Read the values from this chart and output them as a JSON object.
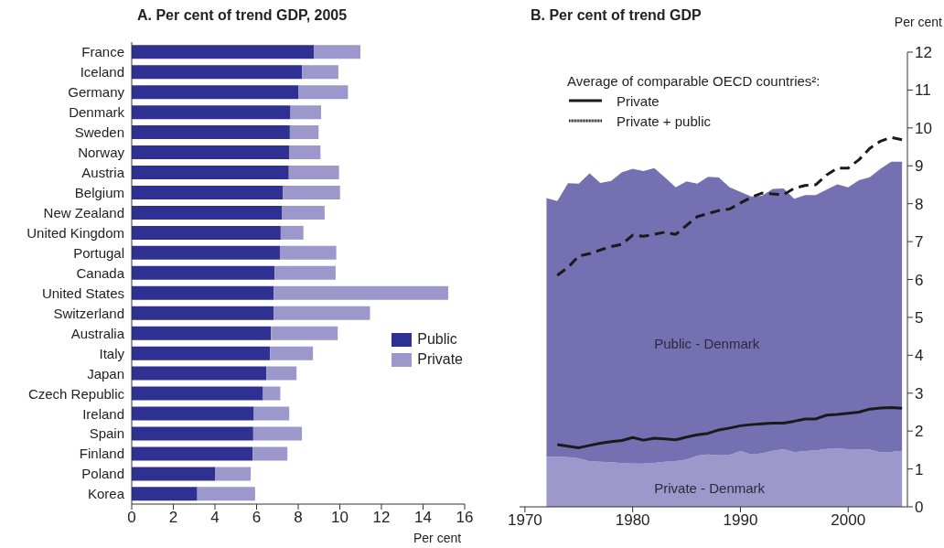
{
  "chart_data": [
    {
      "type": "bar",
      "orientation": "horizontal",
      "stacked": true,
      "title": "A. Per cent of trend GDP, 2005",
      "xlabel": "Per cent",
      "legend": "right",
      "xlim": [
        0,
        16
      ],
      "xticks": [
        0,
        2,
        4,
        6,
        8,
        10,
        12,
        14,
        16
      ],
      "categories": [
        "France",
        "Iceland",
        "Germany",
        "Denmark",
        "Sweden",
        "Norway",
        "Austria",
        "Belgium",
        "New Zealand",
        "United Kingdom",
        "Portugal",
        "Canada",
        "United States",
        "Switzerland",
        "Australia",
        "Italy",
        "Japan",
        "Czech Republic",
        "Ireland",
        "Spain",
        "Finland",
        "Poland",
        "Korea"
      ],
      "series": [
        {
          "name": "Public",
          "color": "#2e3192",
          "values": [
            8.75,
            8.19,
            8.0,
            7.63,
            7.6,
            7.56,
            7.55,
            7.27,
            7.21,
            7.16,
            7.12,
            6.87,
            6.83,
            6.82,
            6.69,
            6.65,
            6.47,
            6.31,
            5.87,
            5.84,
            5.81,
            4.0,
            3.15
          ]
        },
        {
          "name": "Private",
          "color": "#9d98cb",
          "values": [
            2.24,
            1.74,
            2.39,
            1.47,
            1.38,
            1.51,
            2.41,
            2.74,
            2.06,
            1.09,
            2.71,
            2.93,
            8.38,
            4.63,
            3.21,
            2.06,
            1.45,
            0.83,
            1.7,
            2.34,
            1.67,
            1.72,
            2.78
          ]
        }
      ]
    },
    {
      "type": "area",
      "stacked": true,
      "title": "B. Per cent of trend GDP",
      "ylabel": "Per cent",
      "legend_title": "Average of comparable OECD countries²:",
      "legend": "top left",
      "xlim": [
        1969.5,
        2005.5
      ],
      "xticks": [
        1970,
        1980,
        1990,
        2000
      ],
      "ylim": [
        0,
        12
      ],
      "yticks": [
        0,
        1,
        2,
        3,
        4,
        5,
        6,
        7,
        8,
        9,
        10,
        11,
        12
      ],
      "series": [
        {
          "name": "Private - Denmark",
          "color": "#9d98cb",
          "x": [
            1972,
            1973,
            1974,
            1975,
            1976,
            1977,
            1978,
            1979,
            1980,
            1981,
            1982,
            1983,
            1984,
            1985,
            1986,
            1987,
            1988,
            1989,
            1990,
            1991,
            1992,
            1993,
            1994,
            1995,
            1996,
            1997,
            1998,
            1999,
            2000,
            2001,
            2002,
            2003,
            2004,
            2005
          ],
          "values": [
            1.32,
            1.32,
            1.31,
            1.28,
            1.2,
            1.19,
            1.18,
            1.15,
            1.14,
            1.14,
            1.16,
            1.19,
            1.21,
            1.25,
            1.35,
            1.38,
            1.36,
            1.37,
            1.47,
            1.38,
            1.41,
            1.48,
            1.52,
            1.44,
            1.47,
            1.49,
            1.53,
            1.54,
            1.52,
            1.52,
            1.51,
            1.44,
            1.45,
            1.48
          ]
        },
        {
          "name": "Public - Denmark",
          "color": "#7570b1",
          "x": [
            1972,
            1973,
            1974,
            1975,
            1976,
            1977,
            1978,
            1979,
            1980,
            1981,
            1982,
            1983,
            1984,
            1985,
            1986,
            1987,
            1988,
            1989,
            1990,
            1991,
            1992,
            1993,
            1994,
            1995,
            1996,
            1997,
            1998,
            1999,
            2000,
            2001,
            2002,
            2003,
            2004,
            2005
          ],
          "values": [
            6.83,
            6.75,
            7.23,
            7.25,
            7.6,
            7.36,
            7.42,
            7.68,
            7.78,
            7.72,
            7.78,
            7.5,
            7.22,
            7.34,
            7.18,
            7.33,
            7.33,
            7.06,
            6.84,
            6.81,
            6.8,
            6.91,
            6.88,
            6.69,
            6.76,
            6.74,
            6.84,
            6.97,
            6.91,
            7.1,
            7.19,
            7.48,
            7.66,
            7.63
          ]
        },
        {
          "name": "Private",
          "type": "line",
          "line_style": "solid",
          "color": "#1a1a1a",
          "x": [
            1973,
            1974,
            1975,
            1976,
            1977,
            1978,
            1979,
            1980,
            1981,
            1982,
            1983,
            1984,
            1985,
            1986,
            1987,
            1988,
            1989,
            1990,
            1991,
            1992,
            1993,
            1994,
            1995,
            1996,
            1997,
            1998,
            1999,
            2000,
            2001,
            2002,
            2003,
            2004,
            2005
          ],
          "values": [
            1.64,
            1.6,
            1.56,
            1.62,
            1.68,
            1.72,
            1.75,
            1.83,
            1.76,
            1.81,
            1.79,
            1.77,
            1.84,
            1.9,
            1.94,
            2.03,
            2.08,
            2.14,
            2.17,
            2.19,
            2.21,
            2.21,
            2.26,
            2.32,
            2.32,
            2.42,
            2.44,
            2.47,
            2.5,
            2.58,
            2.61,
            2.62,
            2.6
          ]
        },
        {
          "name": "Private + public",
          "type": "line",
          "line_style": "dashed",
          "color": "#1a1a1a",
          "x": [
            1973,
            1974,
            1975,
            1976,
            1977,
            1978,
            1979,
            1980,
            1981,
            1982,
            1983,
            1984,
            1985,
            1986,
            1987,
            1988,
            1989,
            1990,
            1991,
            1992,
            1993,
            1994,
            1995,
            1996,
            1997,
            1998,
            1999,
            2000,
            2001,
            2002,
            2003,
            2004,
            2005
          ],
          "values": [
            6.11,
            6.32,
            6.62,
            6.68,
            6.78,
            6.87,
            6.93,
            7.17,
            7.14,
            7.19,
            7.25,
            7.19,
            7.43,
            7.66,
            7.74,
            7.82,
            7.86,
            8.02,
            8.17,
            8.28,
            8.26,
            8.24,
            8.41,
            8.48,
            8.5,
            8.76,
            8.94,
            8.94,
            9.16,
            9.46,
            9.65,
            9.75,
            9.69
          ]
        }
      ]
    }
  ]
}
